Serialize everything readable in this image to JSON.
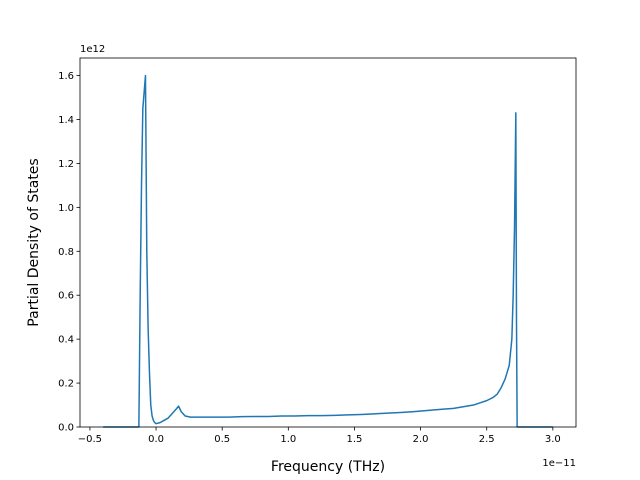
{
  "chart_data": {
    "type": "line",
    "title": "",
    "xlabel": "Frequency (THz)",
    "ylabel": "Partial Density of States",
    "x_offset_label": "1e−11",
    "y_offset_label": "1e12",
    "x_scale": 1e-11,
    "y_scale": 1000000000000.0,
    "xlim": [
      -0.575,
      3.175
    ],
    "ylim": [
      0,
      1.68
    ],
    "x_ticks": [
      -0.5,
      0.0,
      0.5,
      1.0,
      1.5,
      2.0,
      2.5,
      3.0
    ],
    "x_tick_labels": [
      "−0.5",
      "0.0",
      "0.5",
      "1.0",
      "1.5",
      "2.0",
      "2.5",
      "3.0"
    ],
    "y_ticks": [
      0.0,
      0.2,
      0.4,
      0.6,
      0.8,
      1.0,
      1.2,
      1.4,
      1.6
    ],
    "y_tick_labels": [
      "0.0",
      "0.2",
      "0.4",
      "0.6",
      "0.8",
      "1.0",
      "1.2",
      "1.4",
      "1.6"
    ],
    "grid": false,
    "legend": "none",
    "colors": {
      "line": "#1f77b4"
    },
    "series": [
      {
        "x": [
          -0.4,
          -0.13,
          -0.12,
          -0.11,
          -0.1,
          -0.08,
          -0.07,
          -0.06,
          -0.05,
          -0.04,
          -0.03,
          -0.02,
          -0.01,
          0.0,
          0.03,
          0.06,
          0.09,
          0.12,
          0.15,
          0.17,
          0.19,
          0.22,
          0.26,
          0.3,
          0.35,
          0.45,
          0.55,
          0.65,
          0.75,
          0.85,
          0.95,
          1.05,
          1.15,
          1.25,
          1.35,
          1.45,
          1.55,
          1.65,
          1.75,
          1.85,
          1.95,
          2.05,
          2.15,
          2.25,
          2.3,
          2.35,
          2.4,
          2.45,
          2.5,
          2.55,
          2.58,
          2.61,
          2.64,
          2.67,
          2.69,
          2.7,
          2.71,
          2.72,
          2.725,
          2.73,
          3.0
        ],
        "y": [
          0.0,
          0.0,
          0.6,
          1.1,
          1.45,
          1.6,
          0.8,
          0.45,
          0.25,
          0.1,
          0.05,
          0.03,
          0.02,
          0.015,
          0.02,
          0.03,
          0.04,
          0.06,
          0.08,
          0.095,
          0.07,
          0.05,
          0.045,
          0.045,
          0.045,
          0.045,
          0.045,
          0.047,
          0.048,
          0.048,
          0.05,
          0.05,
          0.052,
          0.052,
          0.053,
          0.055,
          0.057,
          0.06,
          0.063,
          0.066,
          0.07,
          0.075,
          0.08,
          0.085,
          0.09,
          0.095,
          0.1,
          0.11,
          0.12,
          0.135,
          0.15,
          0.18,
          0.22,
          0.28,
          0.4,
          0.6,
          0.9,
          1.43,
          0.5,
          0.0,
          0.0
        ]
      }
    ]
  }
}
